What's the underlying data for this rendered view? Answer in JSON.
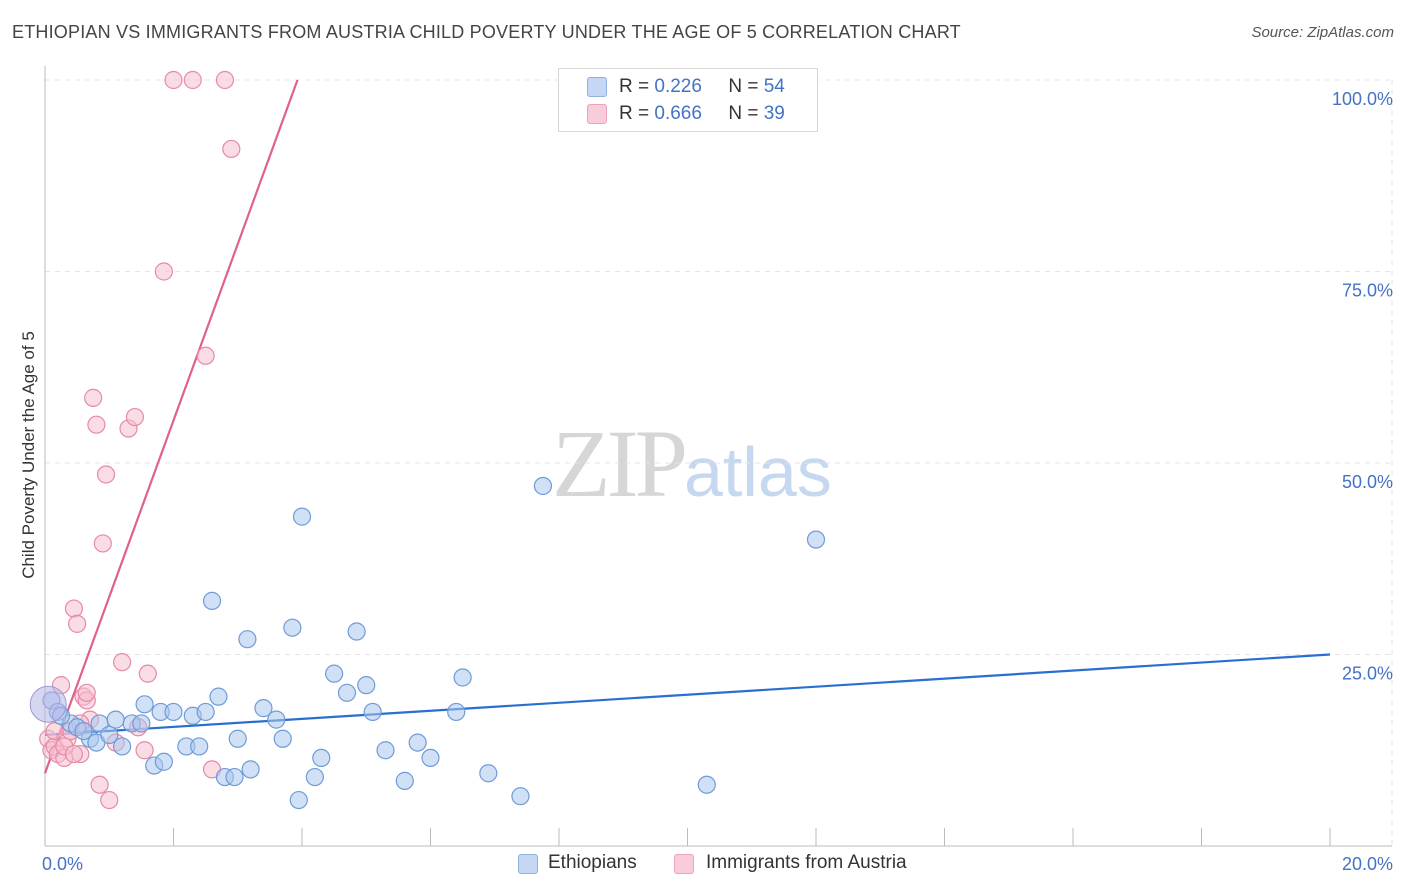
{
  "title": "ETHIOPIAN VS IMMIGRANTS FROM AUSTRIA CHILD POVERTY UNDER THE AGE OF 5 CORRELATION CHART",
  "source": "Source: ZipAtlas.com",
  "watermark": {
    "zip": "ZIP",
    "atlas": "atlas"
  },
  "legend": {
    "rows": [
      {
        "r_label": "R =",
        "r_value": "0.226",
        "n_label": "N =",
        "n_value": "54"
      },
      {
        "r_label": "R =",
        "r_value": "0.666",
        "n_label": "N =",
        "n_value": "39"
      }
    ]
  },
  "bottom_legend": {
    "series1": "Ethiopians",
    "series2": "Immigrants from Austria"
  },
  "colors": {
    "blue_fill": "#aac6ec",
    "blue_stroke": "#6f9bd8",
    "blue_line": "#2a6fcf",
    "pink_fill": "#f6bfd0",
    "pink_stroke": "#e68aa8",
    "pink_line": "#e0608e",
    "tick_text": "#4472c4"
  },
  "chart_data": {
    "type": "scatter",
    "title": "ETHIOPIAN VS IMMIGRANTS FROM AUSTRIA CHILD POVERTY UNDER THE AGE OF 5 CORRELATION CHART",
    "xlabel": "",
    "ylabel": "Child Poverty Under the Age of 5",
    "xlim": [
      0,
      20
    ],
    "ylim": [
      0,
      100
    ],
    "x_tick_labels": [
      "0.0%",
      "20.0%"
    ],
    "y_ticks": [
      25,
      50,
      75,
      100
    ],
    "y_tick_labels": [
      "25.0%",
      "50.0%",
      "75.0%",
      "100.0%"
    ],
    "series": [
      {
        "name": "Ethiopians",
        "points": [
          [
            0.1,
            19
          ],
          [
            0.2,
            17.5
          ],
          [
            0.4,
            16
          ],
          [
            0.5,
            15.5
          ],
          [
            0.7,
            14
          ],
          [
            0.8,
            13.5
          ],
          [
            0.85,
            16
          ],
          [
            1.0,
            14.5
          ],
          [
            1.1,
            16.5
          ],
          [
            1.2,
            13
          ],
          [
            1.35,
            16
          ],
          [
            1.5,
            16
          ],
          [
            1.55,
            18.5
          ],
          [
            1.7,
            10.5
          ],
          [
            1.8,
            17.5
          ],
          [
            1.85,
            11
          ],
          [
            2.0,
            17.5
          ],
          [
            2.2,
            13
          ],
          [
            2.3,
            17
          ],
          [
            2.4,
            13
          ],
          [
            2.5,
            17.5
          ],
          [
            2.6,
            32
          ],
          [
            2.7,
            19.5
          ],
          [
            2.8,
            9
          ],
          [
            2.95,
            9
          ],
          [
            3.0,
            14
          ],
          [
            3.15,
            27
          ],
          [
            3.2,
            10
          ],
          [
            3.4,
            18
          ],
          [
            3.6,
            16.5
          ],
          [
            3.7,
            14
          ],
          [
            3.85,
            28.5
          ],
          [
            3.95,
            6
          ],
          [
            4.0,
            43
          ],
          [
            4.2,
            9
          ],
          [
            4.3,
            11.5
          ],
          [
            4.5,
            22.5
          ],
          [
            4.7,
            20
          ],
          [
            4.85,
            28
          ],
          [
            5.0,
            21
          ],
          [
            5.1,
            17.5
          ],
          [
            5.3,
            12.5
          ],
          [
            5.6,
            8.5
          ],
          [
            5.8,
            13.5
          ],
          [
            6.0,
            11.5
          ],
          [
            6.4,
            17.5
          ],
          [
            6.5,
            22
          ],
          [
            6.9,
            9.5
          ],
          [
            7.4,
            6.5
          ],
          [
            7.75,
            47
          ],
          [
            10.3,
            8
          ],
          [
            12.0,
            40
          ],
          [
            0.25,
            17
          ],
          [
            0.6,
            15
          ]
        ]
      },
      {
        "name": "Immigrants from Austria",
        "points": [
          [
            0.05,
            14
          ],
          [
            0.1,
            12.5
          ],
          [
            0.15,
            13
          ],
          [
            0.2,
            12
          ],
          [
            0.25,
            21
          ],
          [
            0.3,
            11.5
          ],
          [
            0.35,
            14
          ],
          [
            0.4,
            15
          ],
          [
            0.45,
            31
          ],
          [
            0.5,
            29
          ],
          [
            0.55,
            12
          ],
          [
            0.6,
            19.5
          ],
          [
            0.65,
            19
          ],
          [
            0.7,
            16.5
          ],
          [
            0.75,
            58.5
          ],
          [
            0.8,
            55
          ],
          [
            0.85,
            8
          ],
          [
            0.9,
            39.5
          ],
          [
            0.95,
            48.5
          ],
          [
            1.0,
            6
          ],
          [
            1.1,
            13.5
          ],
          [
            1.2,
            24
          ],
          [
            1.3,
            54.5
          ],
          [
            1.4,
            56
          ],
          [
            1.45,
            15.5
          ],
          [
            1.55,
            12.5
          ],
          [
            1.6,
            22.5
          ],
          [
            1.85,
            75
          ],
          [
            2.0,
            100
          ],
          [
            2.3,
            100
          ],
          [
            2.5,
            64
          ],
          [
            2.6,
            10
          ],
          [
            2.8,
            100
          ],
          [
            2.9,
            91
          ],
          [
            0.15,
            15
          ],
          [
            0.3,
            13
          ],
          [
            0.45,
            12
          ],
          [
            0.55,
            16
          ],
          [
            0.65,
            20
          ]
        ]
      }
    ],
    "trend_lines": [
      {
        "series": "Ethiopians",
        "x": [
          0,
          20
        ],
        "y": [
          14.5,
          25
        ]
      },
      {
        "series": "Immigrants from Austria",
        "x": [
          0,
          3.93
        ],
        "y": [
          9.5,
          100
        ]
      }
    ]
  }
}
